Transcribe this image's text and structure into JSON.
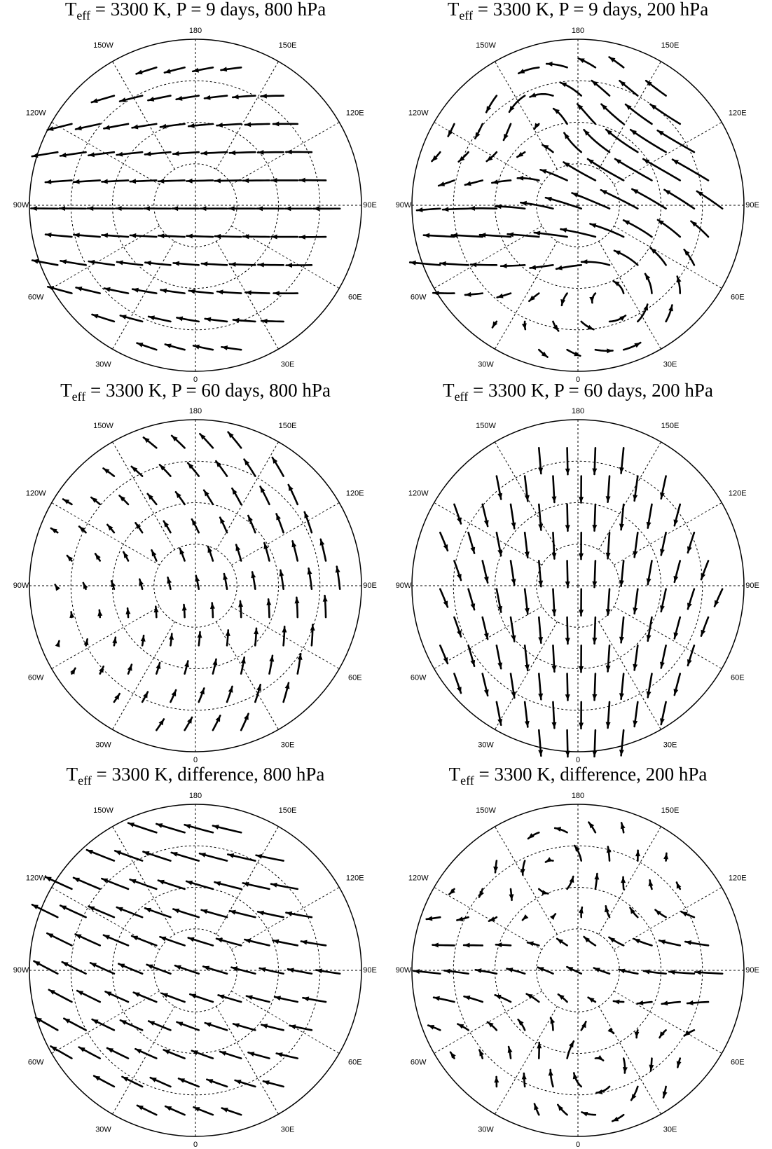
{
  "panels": [
    {
      "title": {
        "base": "T",
        "sub": "eff",
        "rest": " = 3300 K, P = 9 days, 800 hPa"
      }
    },
    {
      "title": {
        "base": "T",
        "sub": "eff",
        "rest": " = 3300 K, P = 9 days, 200 hPa"
      }
    },
    {
      "title": {
        "base": "T",
        "sub": "eff",
        "rest": " = 3300 K, P = 60 days, 800 hPa"
      }
    },
    {
      "title": {
        "base": "T",
        "sub": "eff",
        "rest": " = 3300 K, P = 60 days, 200 hPa"
      }
    },
    {
      "title": {
        "base": "T",
        "sub": "eff",
        "rest": " = 3300 K, difference, 800 hPa"
      }
    },
    {
      "title": {
        "base": "T",
        "sub": "eff",
        "rest": " = 3300 K, difference, 200 hPa"
      }
    }
  ],
  "longitude_labels": [
    "0",
    "30E",
    "60E",
    "90E",
    "120E",
    "150E",
    "180",
    "150W",
    "120W",
    "90W",
    "60W",
    "30W"
  ]
}
